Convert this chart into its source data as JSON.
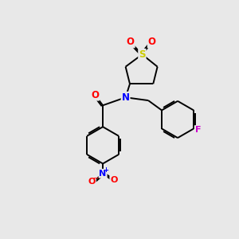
{
  "bg_color": "#e8e8e8",
  "bond_color": "#000000",
  "atom_colors": {
    "O": "#ff0000",
    "N": "#0000ff",
    "S": "#cccc00",
    "F": "#cc00cc",
    "C": "#000000"
  }
}
